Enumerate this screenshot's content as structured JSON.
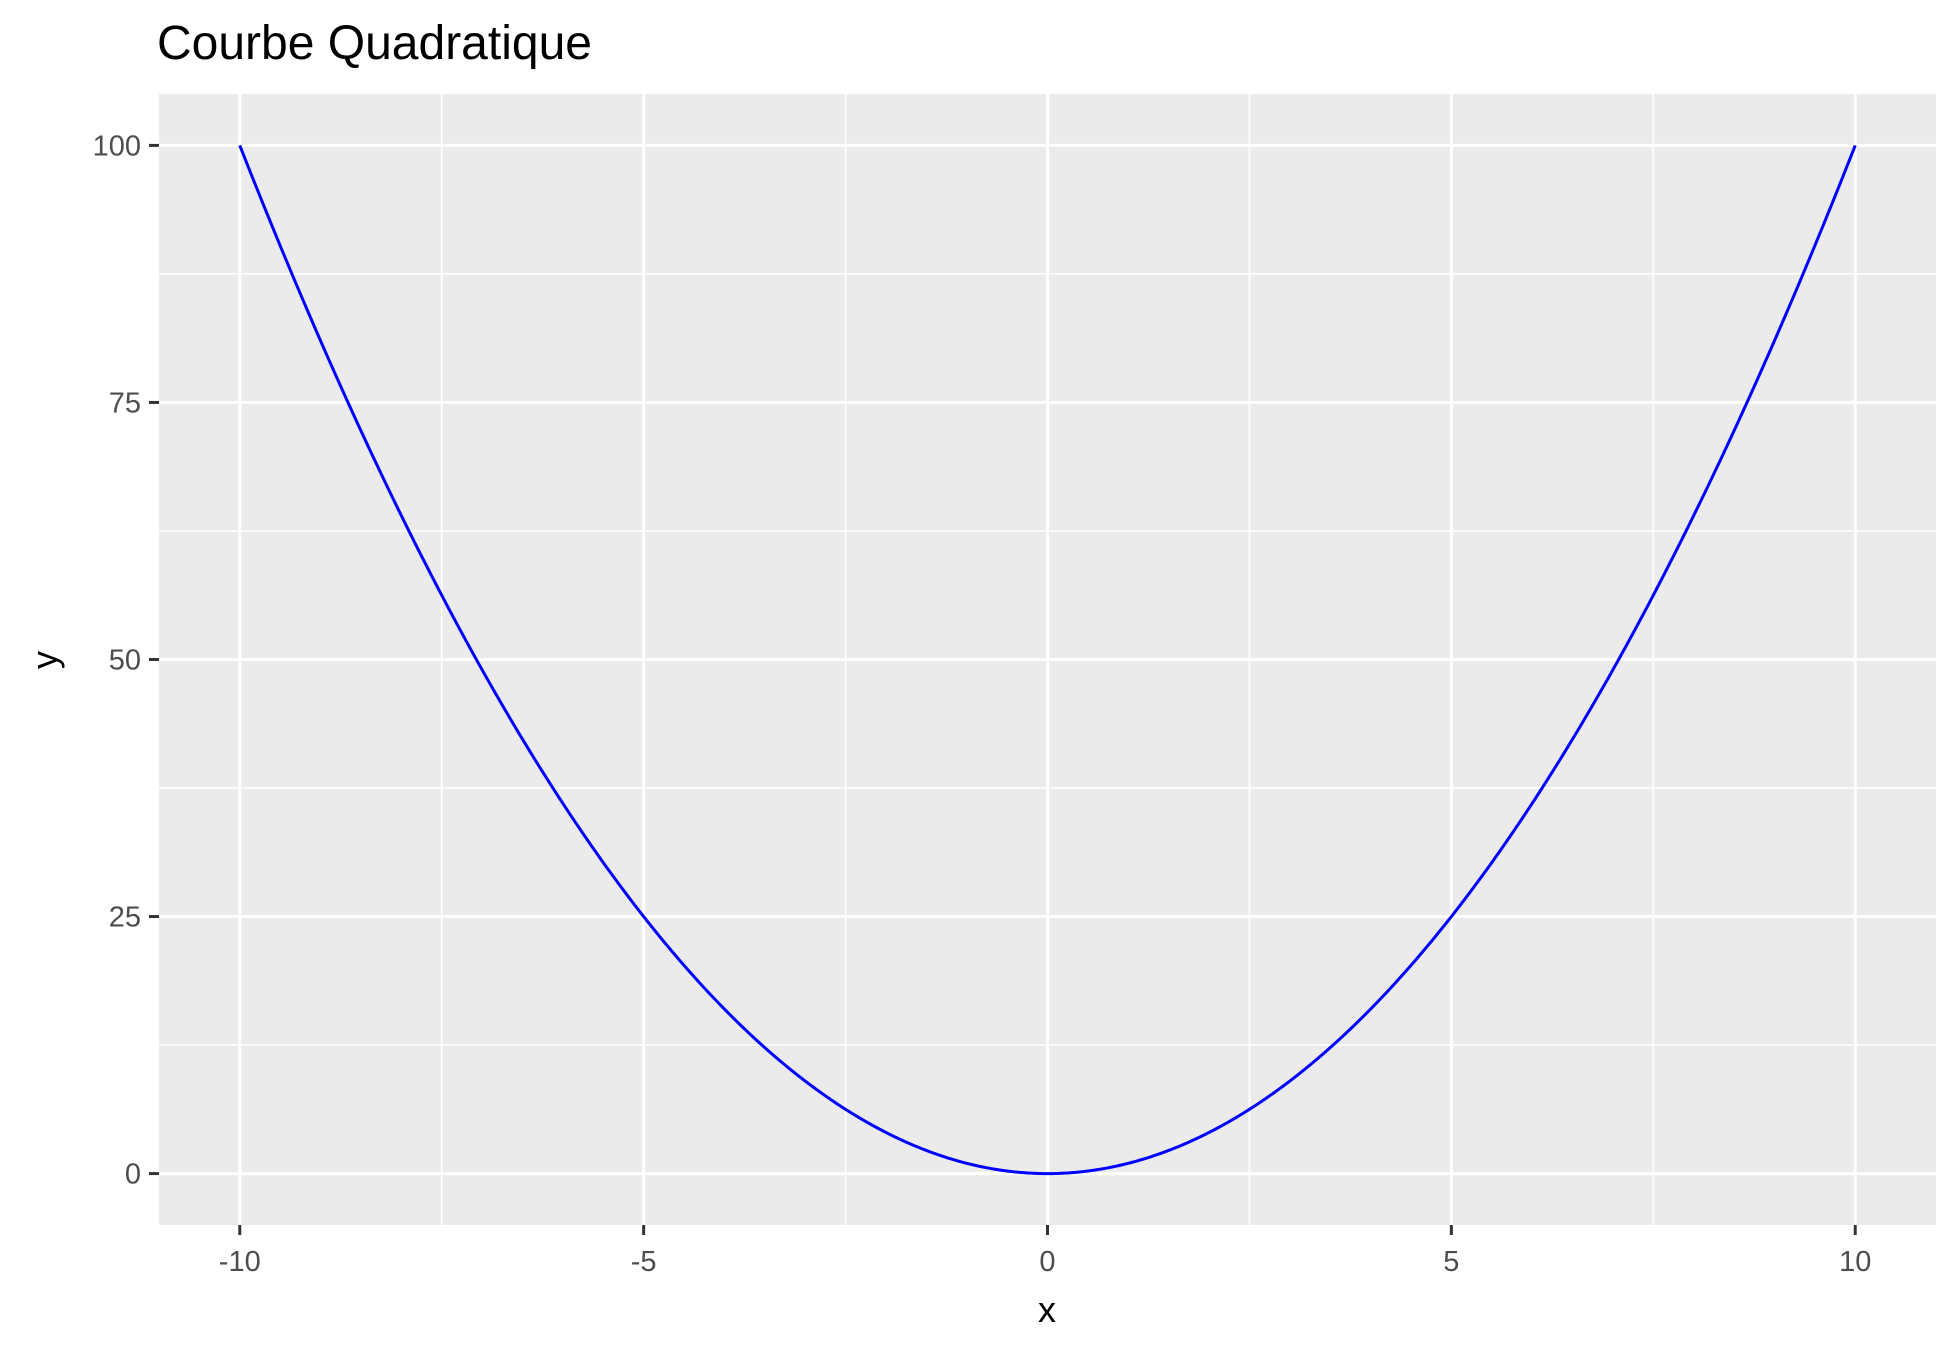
{
  "chart_data": {
    "type": "line",
    "title": "Courbe Quadratique",
    "xlabel": "x",
    "ylabel": "y",
    "xlim": [
      -11,
      11
    ],
    "ylim": [
      -5,
      105
    ],
    "x_ticks": [
      -10,
      -5,
      0,
      5,
      10
    ],
    "x_tick_labels": [
      "-10",
      "-5",
      "0",
      "5",
      "10"
    ],
    "y_ticks": [
      0,
      25,
      50,
      75,
      100
    ],
    "y_tick_labels": [
      "0",
      "25",
      "50",
      "75",
      "100"
    ],
    "x_minor": [
      -7.5,
      -2.5,
      2.5,
      7.5
    ],
    "y_minor": [
      12.5,
      37.5,
      62.5,
      87.5
    ],
    "grid": true,
    "panel_color": "#ebebeb",
    "grid_color": "#ffffff",
    "series": [
      {
        "color": "#0000ff",
        "x": [
          -10,
          -9,
          -8,
          -7,
          -6,
          -5,
          -4,
          -3,
          -2,
          -1,
          0,
          1,
          2,
          3,
          4,
          5,
          6,
          7,
          8,
          9,
          10
        ],
        "y": [
          100,
          81,
          64,
          49,
          36,
          25,
          16,
          9,
          4,
          1,
          0,
          1,
          4,
          9,
          16,
          25,
          36,
          49,
          64,
          81,
          100
        ]
      }
    ]
  }
}
